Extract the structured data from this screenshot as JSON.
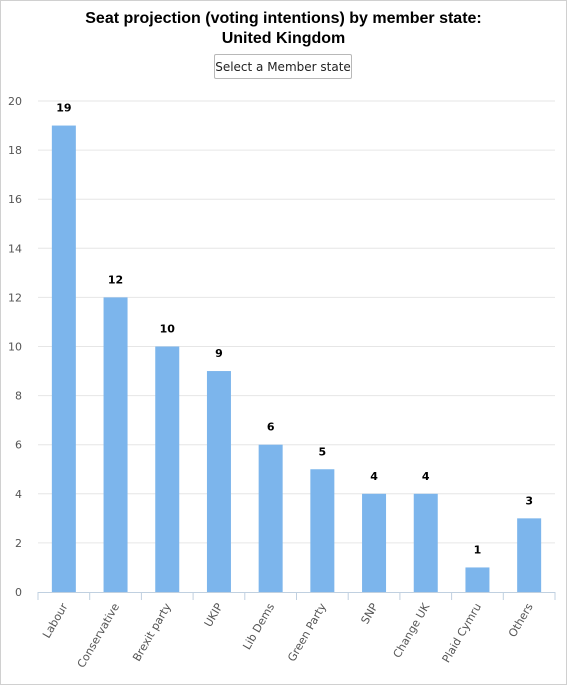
{
  "chart_data": {
    "type": "bar",
    "title": "Seat projection (voting intentions) by member state:",
    "subtitle": "United Kingdom",
    "xlabel": "",
    "ylabel": "",
    "categories": [
      "Labour",
      "Conservative",
      "Brexit party",
      "UKIP",
      "Lib Dems",
      "Green Party",
      "SNP",
      "Change UK",
      "Plaid Cymru",
      "Others"
    ],
    "values": [
      19,
      12,
      10,
      9,
      6,
      5,
      4,
      4,
      1,
      3
    ],
    "ylim": [
      0,
      20
    ],
    "yticks": [
      0,
      2,
      4,
      6,
      8,
      10,
      12,
      14,
      16,
      18,
      20
    ],
    "grid": true,
    "bar_color": "#7cb5ec",
    "data_labels": true
  },
  "controls": {
    "member_state_button": "Select a Member state"
  }
}
